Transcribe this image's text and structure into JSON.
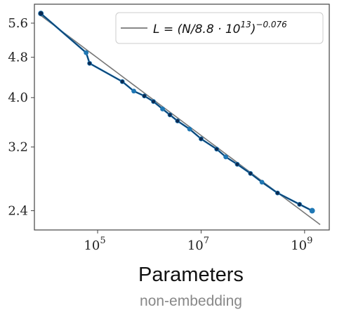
{
  "chart_data": {
    "type": "line",
    "xscale": "log",
    "yscale": "log",
    "xlim": [
      6000,
      3000000000
    ],
    "ylim": [
      2.2,
      6.1
    ],
    "x_ticks": [
      {
        "value": 100000,
        "label": "10",
        "exp": "5"
      },
      {
        "value": 10000000,
        "label": "10",
        "exp": "7"
      },
      {
        "value": 1000000000,
        "label": "10",
        "exp": "9"
      }
    ],
    "y_ticks": [
      {
        "value": 2.4,
        "label": "2.4"
      },
      {
        "value": 3.2,
        "label": "3.2"
      },
      {
        "value": 4.0,
        "label": "4.0"
      },
      {
        "value": 4.8,
        "label": "4.8"
      },
      {
        "value": 5.6,
        "label": "5.6"
      }
    ],
    "xlabel": "Parameters",
    "xlabel_sub": "non-embedding",
    "legend_position": "top-right",
    "series": [
      {
        "name": "L = (N/8.8 · 10^13)^−0.076",
        "legend_label": "L = (N/8.8 · 10",
        "legend_exp": "13",
        "legend_tail": ")",
        "legend_tail_exp": "−0.076",
        "kind": "power_law_fit",
        "color": "#777777",
        "coefficient": 88000000000000.0,
        "exponent": -0.076,
        "x_range": [
          8000,
          2000000000
        ]
      },
      {
        "kind": "data",
        "color": "#1f77b4",
        "points": [
          [
            8000,
            5.85
          ],
          [
            60000,
            4.9
          ],
          [
            70000,
            4.67
          ],
          [
            300000,
            4.3
          ],
          [
            500000,
            4.12
          ],
          [
            800000,
            4.03
          ],
          [
            1200000,
            3.93
          ],
          [
            1800000,
            3.8
          ],
          [
            2500000,
            3.7
          ],
          [
            3500000,
            3.6
          ],
          [
            6000000,
            3.47
          ],
          [
            10000000,
            3.32
          ],
          [
            20000000,
            3.17
          ],
          [
            30000000,
            3.06
          ],
          [
            50000000,
            2.96
          ],
          [
            90000000,
            2.84
          ],
          [
            150000000,
            2.73
          ],
          [
            300000000,
            2.6
          ],
          [
            800000000,
            2.47
          ],
          [
            1400000000,
            2.4
          ]
        ]
      }
    ]
  },
  "colors": {
    "axis": "#444444",
    "fit_line": "#777777",
    "data_light": "#1f77b4",
    "data_dark": "#0a2a52",
    "legend_border": "#cccccc"
  }
}
